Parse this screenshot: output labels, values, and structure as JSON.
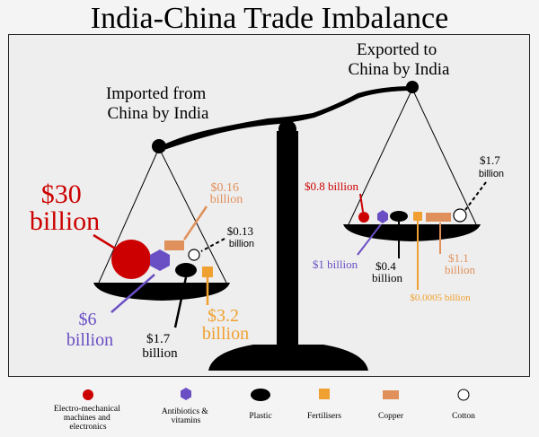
{
  "title": "India-China Trade Imbalance",
  "imports_caption": [
    "Imported from",
    "China by India"
  ],
  "exports_caption": [
    "Exported to",
    "China by India"
  ],
  "colors": {
    "electro": "#cc0000",
    "antibiotics": "#6a4fc4",
    "plastic": "#000000",
    "fertilisers": "#f0a030",
    "copper": "#e0905a",
    "cotton": "#ffffff"
  },
  "imports": {
    "electro": {
      "value_billion": 30,
      "label": [
        "$30",
        "billion"
      ]
    },
    "antibiotics": {
      "value_billion": 6,
      "label": [
        "$6",
        "billion"
      ]
    },
    "plastic": {
      "value_billion": 1.7,
      "label": [
        "$1.7",
        "billion"
      ]
    },
    "fertilisers": {
      "value_billion": 3.2,
      "label": [
        "$3.2",
        "billion"
      ]
    },
    "copper": {
      "value_billion": 0.16,
      "label": [
        "$0.16",
        "billion"
      ]
    },
    "cotton": {
      "value_billion": 0.13,
      "label": [
        "$0.13",
        "billion"
      ]
    }
  },
  "exports": {
    "electro": {
      "value_billion": 0.8,
      "label": "$0.8 billion"
    },
    "antibiotics": {
      "value_billion": 1,
      "label": "$1 billion"
    },
    "plastic": {
      "value_billion": 0.4,
      "label": [
        "$0.4",
        "billion"
      ]
    },
    "fertilisers": {
      "value_billion": 0.0005,
      "label": "$0.0005 billion"
    },
    "copper": {
      "value_billion": 1.1,
      "label": [
        "$1.1",
        "billion"
      ]
    },
    "cotton": {
      "value_billion": 1.7,
      "label": [
        "$1.7",
        "billion"
      ]
    }
  },
  "legend": [
    {
      "key": "electro",
      "icon": "red-circle-icon",
      "label": [
        "Electro-mechanical",
        "machines and",
        "electronics"
      ]
    },
    {
      "key": "antibiotics",
      "icon": "purple-hexagon-icon",
      "label": [
        "Antibiotics &",
        "vitamins"
      ]
    },
    {
      "key": "plastic",
      "icon": "black-ellipse-icon",
      "label": [
        "Plastic"
      ]
    },
    {
      "key": "fertilisers",
      "icon": "orange-square-icon",
      "label": [
        "Fertilisers"
      ]
    },
    {
      "key": "copper",
      "icon": "copper-bar-icon",
      "label": [
        "Copper"
      ]
    },
    {
      "key": "cotton",
      "icon": "white-circle-icon",
      "label": [
        "Cotton"
      ]
    }
  ]
}
